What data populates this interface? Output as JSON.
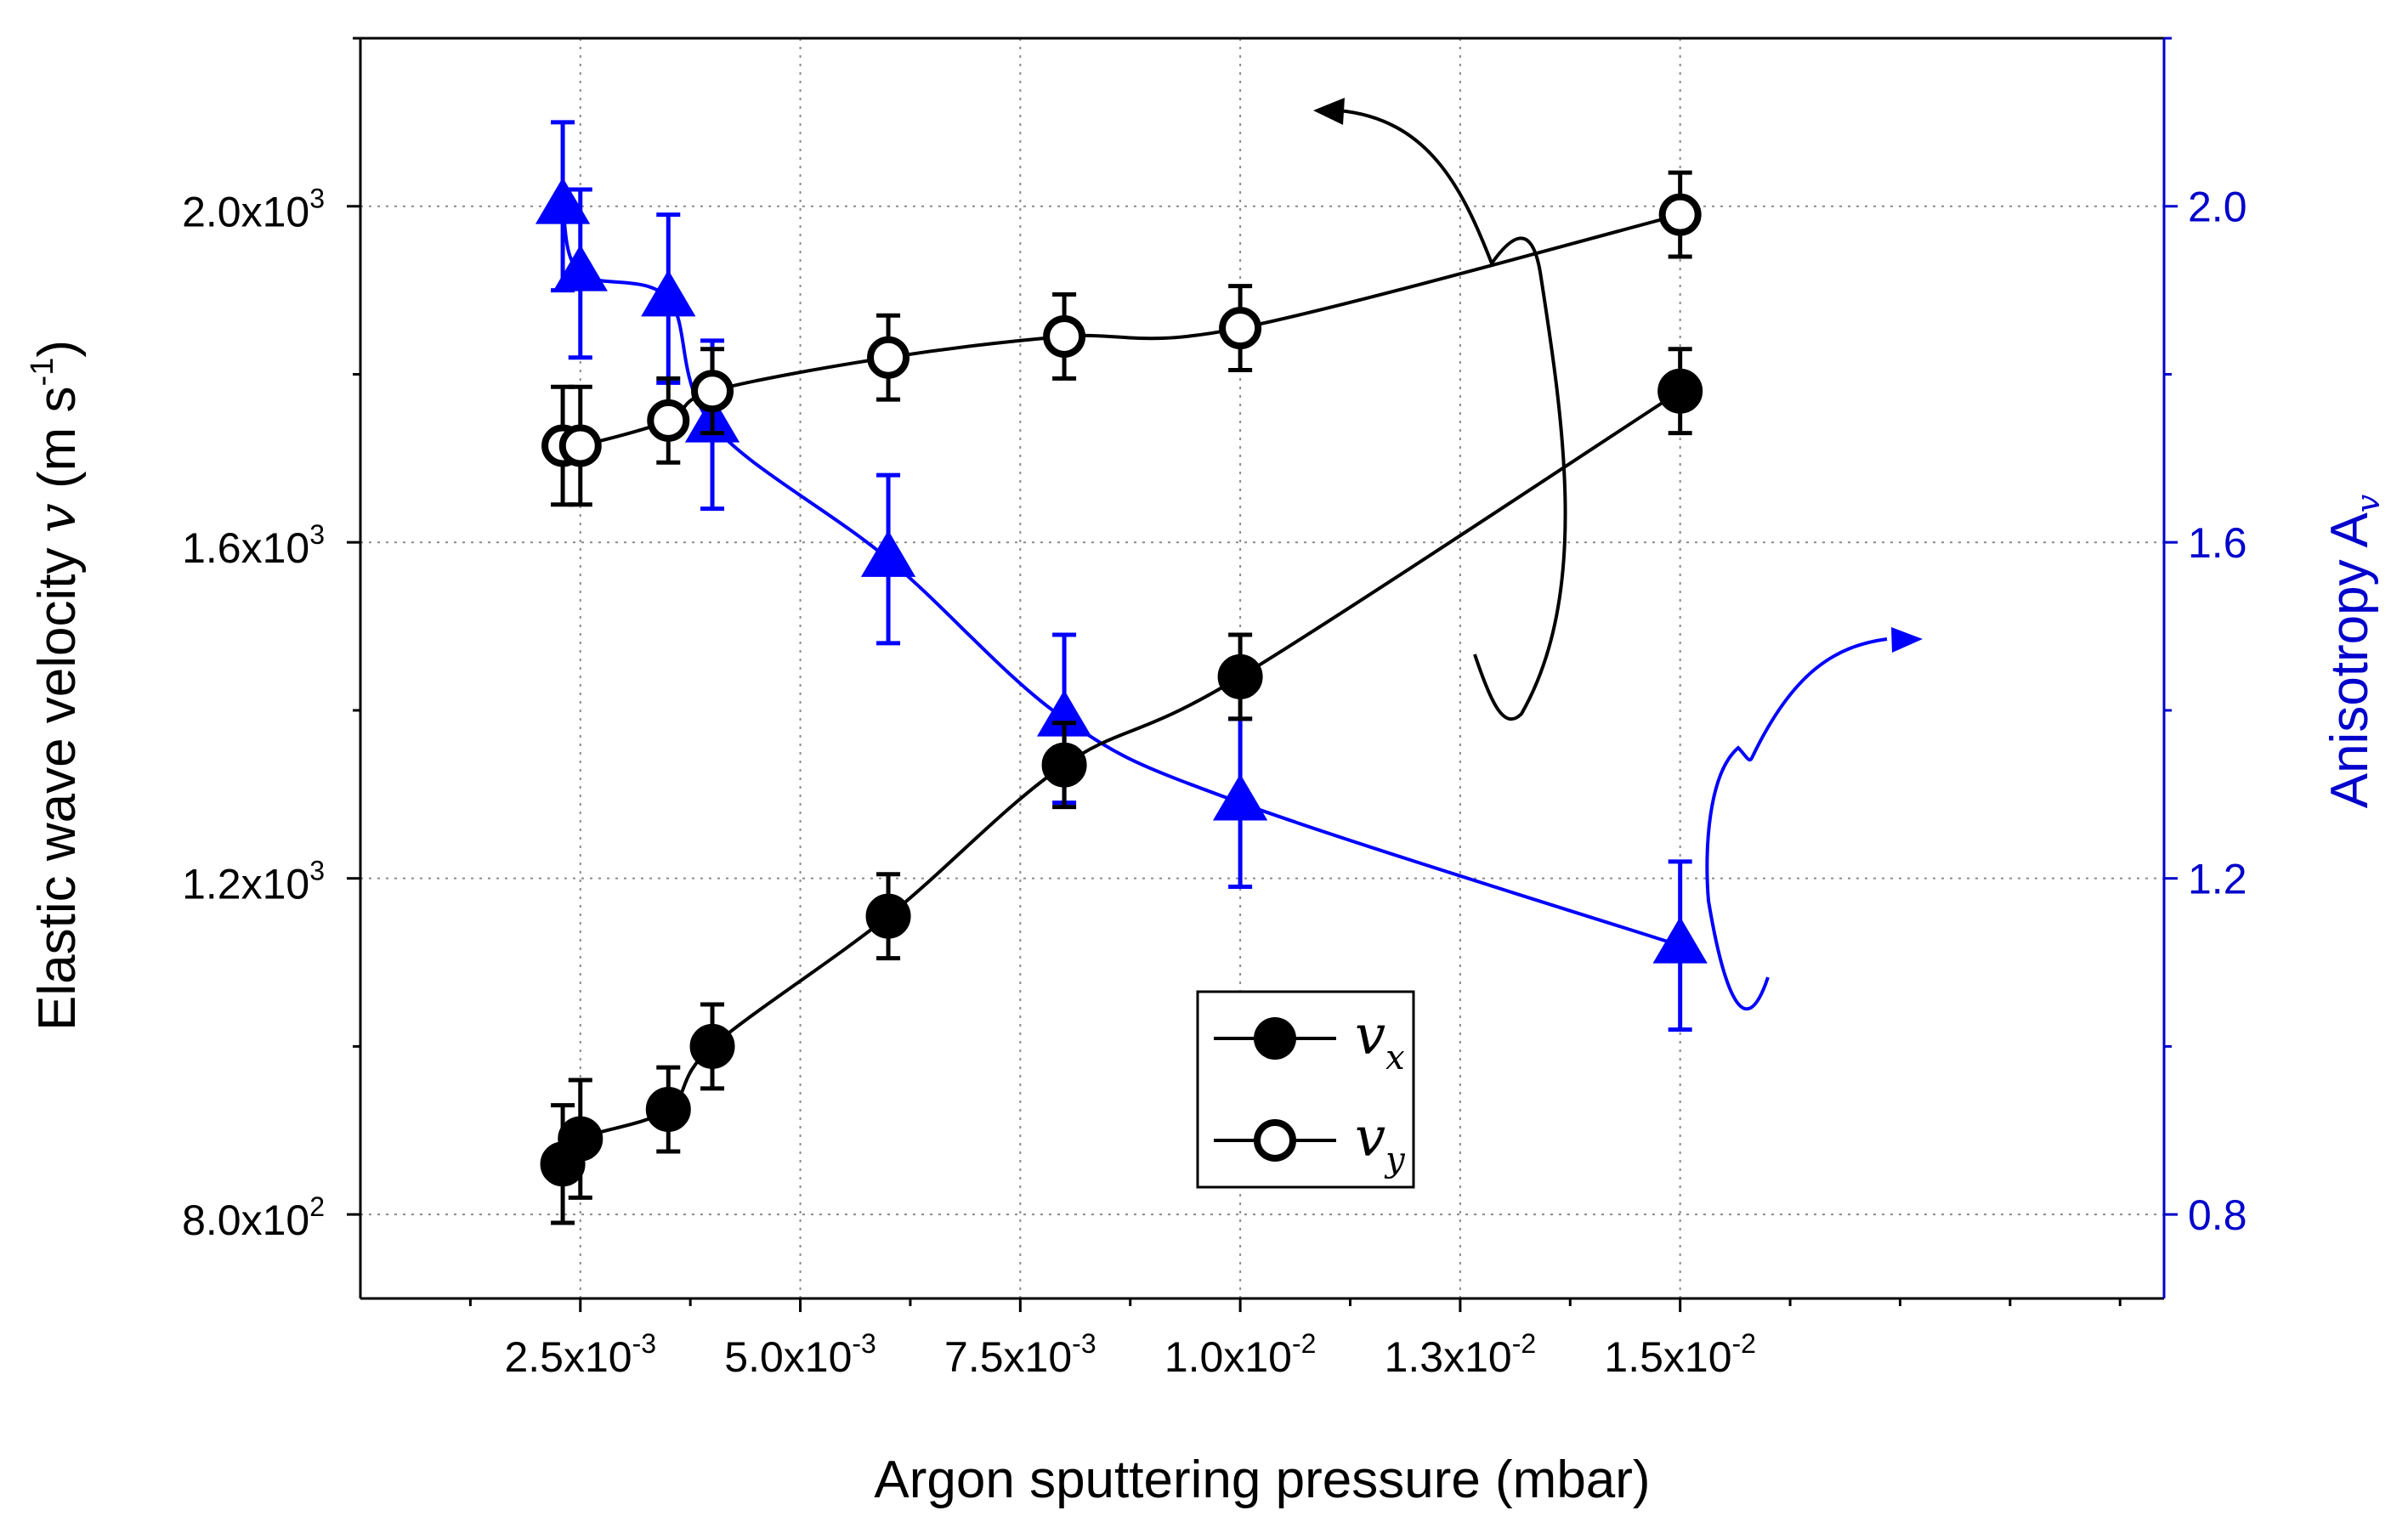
{
  "chart_data": {
    "type": "scatter",
    "xlabel": "Argon sputtering pressure (mbar)",
    "ylabel_left_text": "Elastic wave velocity",
    "ylabel_left_symbol": "v",
    "ylabel_left_unit": "(m s",
    "ylabel_left_unit_exp": "-1",
    "ylabel_left_unit_close": ")",
    "ylabel_right_text": "Anisotropy A",
    "ylabel_right_sub": "v",
    "xlim": [
      0.0,
      0.0205
    ],
    "ylim_left": [
      700,
      2200
    ],
    "ylim_right": [
      0.7,
      2.2
    ],
    "x_ticks": [
      {
        "value": 0.0025,
        "mant": "2.5x10",
        "exp": "-3"
      },
      {
        "value": 0.005,
        "mant": "5.0x10",
        "exp": "-3"
      },
      {
        "value": 0.0075,
        "mant": "7.5x10",
        "exp": "-3"
      },
      {
        "value": 0.01,
        "mant": "1.0x10",
        "exp": "-2"
      },
      {
        "value": 0.0125,
        "mant": "1.3x10",
        "exp": "-2"
      },
      {
        "value": 0.015,
        "mant": "1.5x10",
        "exp": "-2"
      }
    ],
    "y_left_ticks": [
      {
        "value": 800,
        "mant": "8.0x10",
        "exp": "2"
      },
      {
        "value": 1200,
        "mant": "1.2x10",
        "exp": "3"
      },
      {
        "value": 1600,
        "mant": "1.6x10",
        "exp": "3"
      },
      {
        "value": 2000,
        "mant": "2.0x10",
        "exp": "3"
      }
    ],
    "y_right_ticks": [
      {
        "value": 0.8,
        "label": "0.8"
      },
      {
        "value": 1.2,
        "label": "1.2"
      },
      {
        "value": 1.6,
        "label": "1.6"
      },
      {
        "value": 2.0,
        "label": "2.0"
      }
    ],
    "series": [
      {
        "name": "v_x",
        "axis": "left",
        "marker": "filled-circle",
        "color": "#000000",
        "x": [
          0.0023,
          0.0025,
          0.0035,
          0.004,
          0.006,
          0.008,
          0.01,
          0.015
        ],
        "y": [
          860,
          890,
          925,
          1000,
          1155,
          1335,
          1440,
          1780
        ],
        "err": [
          70,
          70,
          50,
          50,
          50,
          50,
          50,
          50
        ]
      },
      {
        "name": "v_y",
        "axis": "left",
        "marker": "open-circle",
        "color": "#000000",
        "x": [
          0.0023,
          0.0025,
          0.0035,
          0.004,
          0.006,
          0.008,
          0.01,
          0.015
        ],
        "y": [
          1715,
          1715,
          1745,
          1780,
          1820,
          1845,
          1855,
          1990
        ],
        "err": [
          70,
          70,
          50,
          50,
          50,
          50,
          50,
          50
        ]
      },
      {
        "name": "Anisotropy",
        "axis": "right",
        "marker": "filled-triangle",
        "color": "#0000ff",
        "x": [
          0.0023,
          0.0025,
          0.0035,
          0.004,
          0.006,
          0.008,
          0.01,
          0.015
        ],
        "y": [
          2.0,
          1.92,
          1.89,
          1.74,
          1.58,
          1.39,
          1.29,
          1.12
        ],
        "err": [
          0.1,
          0.1,
          0.1,
          0.1,
          0.1,
          0.1,
          0.1,
          0.1
        ]
      }
    ],
    "legend": {
      "position": "bottom-center",
      "entries": [
        {
          "label": "v",
          "sub": "x",
          "marker": "filled-circle"
        },
        {
          "label": "v",
          "sub": "y",
          "marker": "open-circle"
        }
      ]
    },
    "annotations": [
      "black curved arrow pointing to left axis",
      "blue curved arrow pointing to right axis"
    ]
  }
}
